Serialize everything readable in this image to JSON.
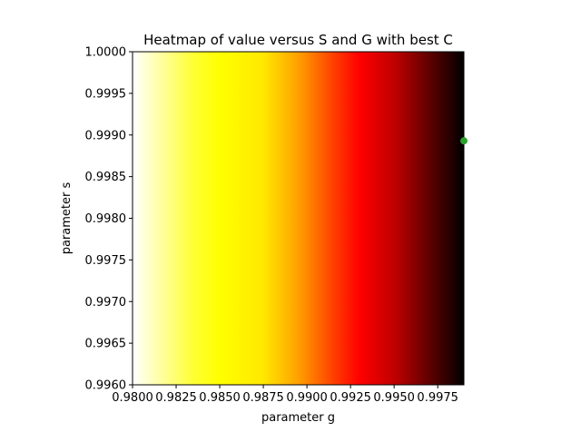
{
  "chart_data": {
    "type": "heatmap",
    "title": "Heatmap of value versus S and G with best C",
    "xlabel": "parameter g",
    "ylabel": "parameter s",
    "xlim": [
      0.98,
      0.999
    ],
    "ylim": [
      0.996,
      1.0
    ],
    "x_ticks": [
      0.98,
      0.9825,
      0.985,
      0.9875,
      0.99,
      0.9925,
      0.995,
      0.9975
    ],
    "x_tick_labels": [
      "0.9800",
      "0.9825",
      "0.9850",
      "0.9875",
      "0.9900",
      "0.9925",
      "0.9950",
      "0.9975"
    ],
    "y_ticks": [
      0.996,
      0.9965,
      0.997,
      0.9975,
      0.998,
      0.9985,
      0.999,
      0.9995,
      1.0
    ],
    "y_tick_labels": [
      "0.9960",
      "0.9965",
      "0.9970",
      "0.9975",
      "0.9980",
      "0.9985",
      "0.9990",
      "0.9995",
      "1.0000"
    ],
    "colormap": "hot_r",
    "color_stops": [
      {
        "g": 0.98,
        "color": "#ffffff"
      },
      {
        "g": 0.9835,
        "color": "#ffff33"
      },
      {
        "g": 0.985,
        "color": "#ffff00"
      },
      {
        "g": 0.9875,
        "color": "#ffe800"
      },
      {
        "g": 0.9895,
        "color": "#ffa000"
      },
      {
        "g": 0.9915,
        "color": "#ff4000"
      },
      {
        "g": 0.993,
        "color": "#ff0000"
      },
      {
        "g": 0.995,
        "color": "#c00000"
      },
      {
        "g": 0.997,
        "color": "#600000"
      },
      {
        "g": 0.999,
        "color": "#000000"
      }
    ],
    "best_point": {
      "g": 0.999,
      "s": 0.99893,
      "color": "#2ca02c"
    },
    "grid": false
  }
}
